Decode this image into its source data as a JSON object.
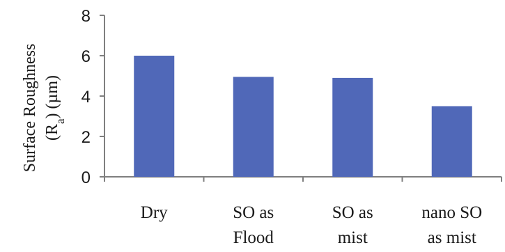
{
  "chart_data": {
    "type": "bar",
    "categories": [
      [
        "Dry"
      ],
      [
        "SO as",
        "Flood"
      ],
      [
        "SO as",
        "mist"
      ],
      [
        "nano SO",
        "as mist"
      ]
    ],
    "values": [
      6.0,
      4.95,
      4.9,
      3.5
    ],
    "yticks": [
      "0",
      "2",
      "4",
      "6",
      "8"
    ],
    "ylim": [
      0,
      8
    ],
    "ylabel": {
      "line1": "Surface Roughness",
      "line2_prefix": "(R",
      "line2_sub": "a",
      "line2_suffix": ")  (µm)"
    },
    "xlabel": "",
    "title": "",
    "grid": false,
    "legend": "none",
    "colors": {
      "bar": "#5068b8",
      "axis": "#7f7f7f",
      "text": "#1a1a1a"
    }
  }
}
